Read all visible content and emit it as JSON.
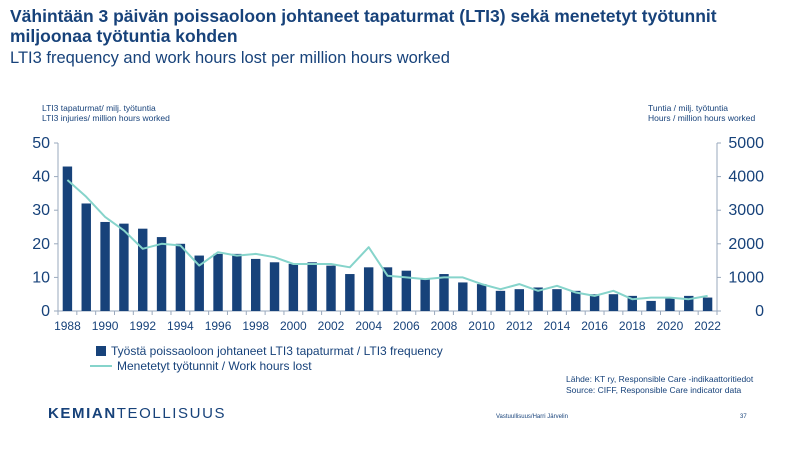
{
  "header": {
    "title": "Vähintään 3 päivän poissaoloon johtaneet tapaturmat (LTI3) sekä menetetyt työtunnit miljoonaa työtuntia kohden",
    "subtitle": "LTI3 frequency and work hours lost per million hours worked"
  },
  "axes": {
    "left_label_line1": "LTI3 tapaturmat/ milj. työtuntia",
    "left_label_line2": "LTI3 injuries/ million hours worked",
    "right_label_line1": "Tuntia / milj. työtuntia",
    "right_label_line2": "Hours / million hours worked"
  },
  "legend": {
    "bar_label": "Työstä poissaoloon johtaneet LTI3 tapaturmat / LTI3 frequency",
    "line_label": "Menetetyt työtunnit / Work hours lost"
  },
  "source": {
    "line1": "Lähde: KT ry, Responsible Care -indikaattoritiedot",
    "line2": "Source: CIFF, Responsible Care indicator data"
  },
  "logo": {
    "bold": "KEMIAN",
    "regular": "TEOLLISUUS"
  },
  "footer": {
    "text": "Vastuullisuus/Harri Järvelin",
    "page": "37"
  },
  "colors": {
    "bar": "#17427a",
    "line": "#86d4cb",
    "text": "#17427a",
    "axis": "#9aa9bd"
  },
  "chart_data": {
    "type": "bar",
    "x": [
      1988,
      1989,
      1990,
      1991,
      1992,
      1993,
      1994,
      1995,
      1996,
      1997,
      1998,
      1999,
      2000,
      2001,
      2002,
      2003,
      2004,
      2005,
      2006,
      2007,
      2008,
      2009,
      2010,
      2011,
      2012,
      2013,
      2014,
      2015,
      2016,
      2017,
      2018,
      2019,
      2020,
      2021,
      2022
    ],
    "x_tick_labels": [
      "1988",
      "1990",
      "1992",
      "1994",
      "1996",
      "1998",
      "2000",
      "2002",
      "2004",
      "2006",
      "2008",
      "2010",
      "2012",
      "2014",
      "2016",
      "2018",
      "2020",
      "2022"
    ],
    "series": [
      {
        "name": "Työstä poissaoloon johtaneet LTI3 tapaturmat / LTI3 frequency",
        "type": "bar",
        "axis": "left",
        "values": [
          43,
          32,
          26.5,
          26,
          24.5,
          22,
          20,
          16.5,
          17,
          17,
          15.5,
          14.5,
          14,
          14.5,
          13.5,
          11,
          13,
          13,
          12,
          9.5,
          11,
          8.5,
          8,
          6,
          6.5,
          7,
          6.5,
          6,
          5,
          5,
          4.5,
          3,
          4,
          4.5,
          4
        ]
      },
      {
        "name": "Menetetyt työtunnit / Work hours lost",
        "type": "line",
        "axis": "right",
        "values": [
          3900,
          3400,
          2800,
          2400,
          1850,
          2000,
          1950,
          1350,
          1750,
          1650,
          1700,
          1600,
          1400,
          1400,
          1400,
          1300,
          1900,
          1050,
          1000,
          950,
          1000,
          1000,
          800,
          650,
          800,
          600,
          750,
          550,
          450,
          600,
          350,
          400,
          400,
          350,
          450
        ]
      }
    ],
    "y_left_range": [
      0,
      50
    ],
    "y_left_ticks": [
      "0",
      "10",
      "20",
      "30",
      "40",
      "50"
    ],
    "y_right_range": [
      0,
      5000
    ],
    "y_right_ticks": [
      "0",
      "1000",
      "2000",
      "3000",
      "4000",
      "5000"
    ],
    "grid": false,
    "legend_position": "bottom-left"
  }
}
